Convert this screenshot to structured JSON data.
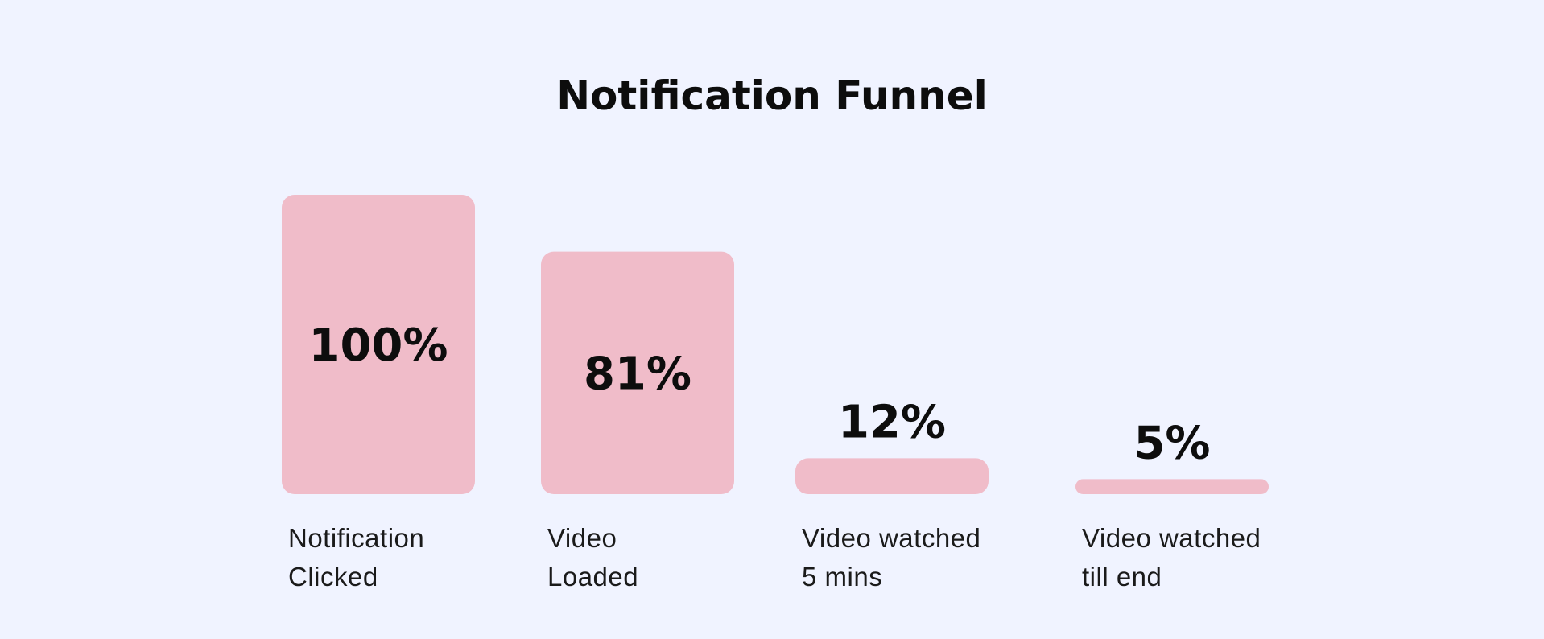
{
  "chart_data": {
    "type": "bar",
    "title": "Notification Funnel",
    "categories": [
      [
        "Notification",
        "Clicked"
      ],
      [
        "Video",
        "Loaded"
      ],
      [
        "Video watched",
        "5 mins"
      ],
      [
        "Video watched",
        "till end"
      ]
    ],
    "values": [
      100,
      81,
      12,
      5
    ],
    "value_labels": [
      "100%",
      "81%",
      "12%",
      "5%"
    ],
    "ylim": [
      0,
      100
    ],
    "bar_color": "#f0bcc9",
    "background_color": "#f0f3ff",
    "grid": false,
    "xlabel": "",
    "ylabel": ""
  }
}
